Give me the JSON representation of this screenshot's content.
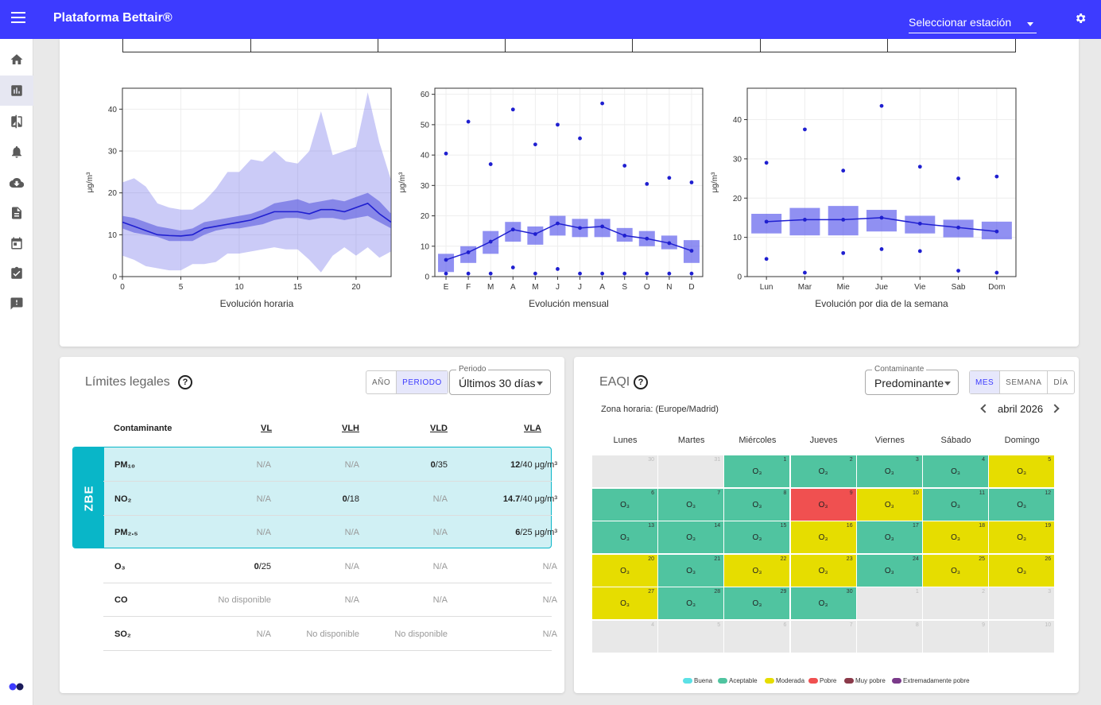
{
  "app": {
    "title": "Plataforma Bettair®",
    "station_select": "Seleccionar estación"
  },
  "sidebar": {
    "items": [
      {
        "icon": "home-icon"
      },
      {
        "icon": "bar-chart-icon"
      },
      {
        "icon": "compare-icon"
      },
      {
        "icon": "bell-icon"
      },
      {
        "icon": "cloud-download-icon"
      },
      {
        "icon": "document-icon"
      },
      {
        "icon": "calendar-icon"
      },
      {
        "icon": "clipboard-check-icon"
      },
      {
        "icon": "report-icon"
      }
    ]
  },
  "charts": {
    "hourly": {
      "xlabel": "Evolución horaria",
      "ylabel": "μg/m³",
      "yticks": [
        "0",
        "10",
        "20",
        "30",
        "40"
      ],
      "xticks": [
        "0",
        "5",
        "10",
        "15",
        "20"
      ]
    },
    "monthly": {
      "xlabel": "Evolución mensual",
      "ylabel": "μg/m³",
      "yticks": [
        "0",
        "10",
        "20",
        "30",
        "40",
        "50",
        "60"
      ],
      "xticks": [
        "E",
        "F",
        "M",
        "A",
        "M",
        "J",
        "J",
        "A",
        "S",
        "O",
        "N",
        "D"
      ]
    },
    "weekly": {
      "xlabel": "Evolución por dia de la semana",
      "ylabel": "μg/m³",
      "yticks": [
        "0",
        "10",
        "20",
        "30",
        "40"
      ],
      "xticks": [
        "Lun",
        "Mar",
        "Mie",
        "Jue",
        "Vie",
        "Sab",
        "Dom"
      ]
    }
  },
  "chart_data": [
    {
      "type": "area",
      "xlabel": "Evolución horaria",
      "ylabel": "μg/m³",
      "ylim": [
        0,
        45
      ],
      "xlim": [
        0,
        23
      ],
      "x": [
        0,
        1,
        2,
        3,
        4,
        5,
        6,
        7,
        8,
        9,
        10,
        11,
        12,
        13,
        14,
        15,
        16,
        17,
        18,
        19,
        20,
        21,
        22,
        23
      ],
      "series": [
        {
          "values": [
            13,
            12,
            11,
            10,
            9.8,
            9.7,
            10,
            11.5,
            12,
            12.5,
            13,
            13.5,
            14.5,
            15.5,
            15.5,
            15.5,
            15,
            16,
            16,
            15.5,
            16.5,
            17.5,
            15,
            13
          ]
        },
        {
          "values": [
            11.5,
            10.5,
            10,
            9.5,
            8.5,
            8.5,
            8.5,
            10,
            11,
            11.5,
            11.5,
            12,
            12.5,
            13.5,
            14,
            14,
            13.5,
            14,
            14,
            13.5,
            14,
            14.5,
            13,
            11.5
          ]
        },
        {
          "values": [
            14.5,
            14,
            13,
            12,
            11.5,
            11,
            11.5,
            13,
            13.5,
            14,
            14.5,
            15,
            16,
            17.5,
            18,
            18.5,
            17.5,
            18,
            18.5,
            18,
            19,
            20,
            18,
            15
          ]
        },
        {
          "values": [
            5,
            4,
            2.5,
            2,
            1.5,
            1.5,
            3,
            3,
            3.5,
            5.5,
            5.5,
            6,
            6.5,
            7,
            6.5,
            6.5,
            4,
            1,
            5,
            7,
            5,
            7,
            4.5,
            6
          ]
        },
        {
          "values": [
            22.5,
            23.5,
            21.5,
            17.5,
            16.5,
            16,
            16,
            18,
            21,
            25,
            25,
            28,
            27.5,
            30,
            27.5,
            27,
            30,
            39.5,
            29,
            30,
            31,
            44,
            32,
            23
          ]
        }
      ]
    },
    {
      "type": "scatter",
      "xlabel": "Evolución mensual",
      "ylabel": "μg/m³",
      "ylim": [
        0,
        62
      ],
      "categories": [
        "E",
        "F",
        "M",
        "A",
        "M",
        "J",
        "J",
        "A",
        "S",
        "O",
        "N",
        "D"
      ],
      "series": [
        {
          "values": [
            5.5,
            8,
            11.5,
            15.5,
            14,
            17.5,
            16,
            16.5,
            13.5,
            12.5,
            11,
            8.5
          ]
        },
        {
          "values": [
            1.5,
            4.5,
            7.5,
            11.5,
            10.5,
            13.5,
            13,
            13,
            11.5,
            10,
            9,
            4.5
          ]
        },
        {
          "values": [
            7.5,
            10,
            15,
            18,
            16.5,
            20,
            19,
            19,
            16,
            15,
            13.5,
            12
          ]
        },
        {
          "values": [
            40.5,
            51,
            37,
            55,
            43.5,
            50,
            45.5,
            57,
            36.5,
            30.5,
            32.5,
            31
          ]
        },
        {
          "values": [
            1,
            1,
            1,
            3,
            1,
            2.5,
            1,
            1,
            1,
            1,
            1,
            1
          ]
        }
      ]
    },
    {
      "type": "scatter",
      "xlabel": "Evolución por dia de la semana",
      "ylabel": "μg/m³",
      "ylim": [
        0,
        48
      ],
      "categories": [
        "Lun",
        "Mar",
        "Mie",
        "Jue",
        "Vie",
        "Sab",
        "Dom"
      ],
      "series": [
        {
          "values": [
            14,
            14.5,
            14.5,
            15,
            13.5,
            12.5,
            11.5
          ]
        },
        {
          "values": [
            11,
            10.5,
            10.5,
            11.5,
            11,
            10,
            9.5
          ]
        },
        {
          "values": [
            16,
            17.5,
            18,
            17,
            15.5,
            14.5,
            14
          ]
        },
        {
          "values": [
            29,
            37.5,
            27,
            43.5,
            28,
            25,
            25.5
          ]
        },
        {
          "values": [
            4.5,
            1,
            6,
            7,
            6.5,
            1.5,
            1
          ]
        }
      ]
    }
  ],
  "limits": {
    "title": "Límites legales",
    "toggle": [
      "AÑO",
      "PERIODO"
    ],
    "period_label": "Periodo",
    "period_value": "Últimos 30 días",
    "headers": {
      "pollutant": "Contaminante",
      "vl": "VL",
      "vlh": "VLH",
      "vld": "VLD",
      "vla": "VLA"
    },
    "zbe_label": "ZBE",
    "rows": [
      {
        "name": "PM₁₀",
        "vl": "N/A",
        "vlh": "N/A",
        "vld_b": "0",
        "vld_r": "/35",
        "vla_b": "12",
        "vla_r": "/40 μg/m³"
      },
      {
        "name": "NO₂",
        "vl": "N/A",
        "vlh_b": "0",
        "vlh_r": "/18",
        "vld": "N/A",
        "vla_b": "14.7",
        "vla_r": "/40 μg/m³"
      },
      {
        "name": "PM₂.₅",
        "vl": "N/A",
        "vlh": "N/A",
        "vld": "N/A",
        "vla_b": "6",
        "vla_r": "/25 μg/m³"
      },
      {
        "name": "O₃",
        "vl_b": "0",
        "vl_r": "/25",
        "vlh": "N/A",
        "vld": "N/A",
        "vla": "N/A"
      },
      {
        "name": "CO",
        "vl": "No disponible",
        "vlh": "N/A",
        "vld": "N/A",
        "vla": "N/A"
      },
      {
        "name": "SO₂",
        "vl": "N/A",
        "vlh": "No disponible",
        "vld": "No disponible",
        "vla": "N/A"
      }
    ]
  },
  "eaqi": {
    "title": "EAQI",
    "pollutant_label": "Contaminante",
    "pollutant_value": "Predominante",
    "toggle": [
      "MES",
      "SEMANA",
      "DÍA"
    ],
    "timezone": "Zona horaria: (Europe/Madrid)",
    "month": "abril 2026",
    "weekdays": [
      "Lunes",
      "Martes",
      "Miércoles",
      "Jueves",
      "Viernes",
      "Sábado",
      "Domingo"
    ],
    "pollutant_symbol": "O₃",
    "colors": {
      "buena": "#5ce1e6",
      "aceptable": "#50c4a0",
      "moderada": "#e6dd00",
      "pobre": "#f05050",
      "muy_pobre": "#8b3a4a",
      "extremadamente_pobre": "#7a3a8a",
      "empty": "#e8e8e8"
    },
    "cells": [
      {
        "d": "30",
        "q": "empty"
      },
      {
        "d": "31",
        "q": "empty"
      },
      {
        "d": "1",
        "q": "aceptable"
      },
      {
        "d": "2",
        "q": "aceptable"
      },
      {
        "d": "3",
        "q": "aceptable"
      },
      {
        "d": "4",
        "q": "aceptable"
      },
      {
        "d": "5",
        "q": "moderada"
      },
      {
        "d": "6",
        "q": "aceptable"
      },
      {
        "d": "7",
        "q": "aceptable"
      },
      {
        "d": "8",
        "q": "aceptable"
      },
      {
        "d": "9",
        "q": "pobre"
      },
      {
        "d": "10",
        "q": "moderada"
      },
      {
        "d": "11",
        "q": "aceptable"
      },
      {
        "d": "12",
        "q": "aceptable"
      },
      {
        "d": "13",
        "q": "aceptable"
      },
      {
        "d": "14",
        "q": "aceptable"
      },
      {
        "d": "15",
        "q": "aceptable"
      },
      {
        "d": "16",
        "q": "moderada"
      },
      {
        "d": "17",
        "q": "aceptable"
      },
      {
        "d": "18",
        "q": "moderada"
      },
      {
        "d": "19",
        "q": "moderada"
      },
      {
        "d": "20",
        "q": "moderada"
      },
      {
        "d": "21",
        "q": "aceptable"
      },
      {
        "d": "22",
        "q": "moderada"
      },
      {
        "d": "23",
        "q": "moderada"
      },
      {
        "d": "24",
        "q": "aceptable"
      },
      {
        "d": "25",
        "q": "moderada"
      },
      {
        "d": "26",
        "q": "moderada"
      },
      {
        "d": "27",
        "q": "moderada"
      },
      {
        "d": "28",
        "q": "aceptable"
      },
      {
        "d": "29",
        "q": "aceptable"
      },
      {
        "d": "30",
        "q": "aceptable"
      },
      {
        "d": "1",
        "q": "empty"
      },
      {
        "d": "2",
        "q": "empty"
      },
      {
        "d": "3",
        "q": "empty"
      },
      {
        "d": "4",
        "q": "empty"
      },
      {
        "d": "5",
        "q": "empty"
      },
      {
        "d": "6",
        "q": "empty"
      },
      {
        "d": "7",
        "q": "empty"
      },
      {
        "d": "8",
        "q": "empty"
      },
      {
        "d": "9",
        "q": "empty"
      },
      {
        "d": "10",
        "q": "empty"
      }
    ],
    "legend": [
      "Buena",
      "Aceptable",
      "Moderada",
      "Pobre",
      "Muy pobre",
      "Extremadamente pobre"
    ]
  }
}
